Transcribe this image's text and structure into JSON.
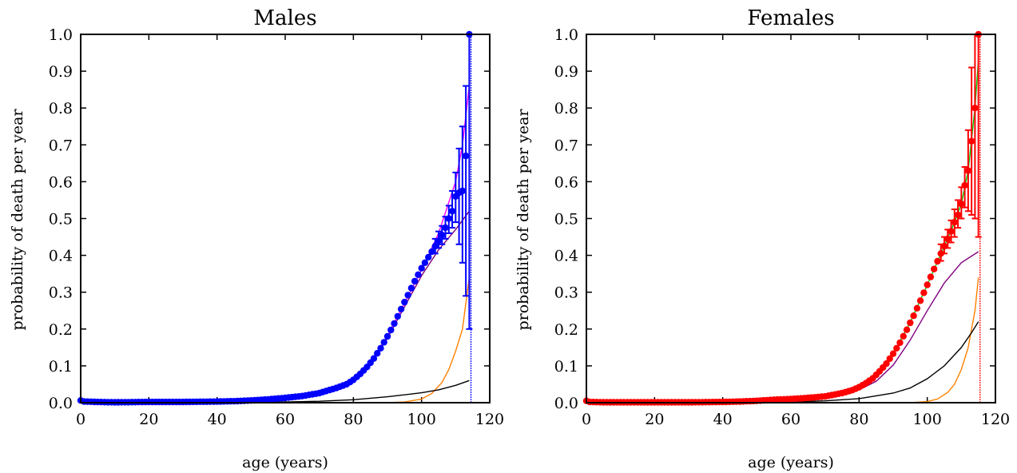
{
  "chart_data": [
    {
      "type": "line",
      "title": "Males",
      "xlabel": "age (years)",
      "ylabel": "probability of death per year",
      "xlim": [
        0,
        120
      ],
      "ylim": [
        0.0,
        1.0
      ],
      "xticks": [
        "0",
        "20",
        "40",
        "60",
        "80",
        "100",
        "120"
      ],
      "yticks": [
        "0.0",
        "0.1",
        "0.2",
        "0.3",
        "0.4",
        "0.5",
        "0.6",
        "0.7",
        "0.8",
        "0.9",
        "1.0"
      ],
      "grid": false,
      "legend": "none",
      "colors": {
        "data": "#0000ff",
        "fit": "#ff00ff",
        "component_a": "#800080",
        "component_b": "#000000",
        "component_c": "#ff8000"
      },
      "data_series": {
        "color": "#0000ff",
        "points": [
          [
            0,
            0.006
          ],
          [
            1,
            0.003
          ],
          [
            5,
            0.002
          ],
          [
            10,
            0.001
          ],
          [
            20,
            0.002
          ],
          [
            30,
            0.002
          ],
          [
            40,
            0.003
          ],
          [
            45,
            0.004
          ],
          [
            50,
            0.006
          ],
          [
            55,
            0.009
          ],
          [
            60,
            0.013
          ],
          [
            65,
            0.018
          ],
          [
            70,
            0.026
          ],
          [
            75,
            0.04
          ],
          [
            78,
            0.05
          ],
          [
            80,
            0.062
          ],
          [
            82,
            0.078
          ],
          [
            84,
            0.097
          ],
          [
            86,
            0.12
          ],
          [
            88,
            0.148
          ],
          [
            90,
            0.18
          ],
          [
            92,
            0.215
          ],
          [
            94,
            0.254
          ],
          [
            96,
            0.292
          ],
          [
            98,
            0.33
          ],
          [
            100,
            0.365
          ],
          [
            102,
            0.395
          ],
          [
            104,
            0.425
          ],
          [
            106,
            0.455
          ],
          [
            107,
            0.475
          ],
          [
            108,
            0.5
          ],
          [
            109,
            0.52
          ],
          [
            110,
            0.56
          ],
          [
            111,
            0.57
          ],
          [
            112,
            0.575
          ],
          [
            113,
            0.67
          ],
          [
            114,
            1.0
          ]
        ],
        "errorbars": [
          [
            104,
            0.405,
            0.445
          ],
          [
            105,
            0.42,
            0.465
          ],
          [
            106,
            0.43,
            0.48
          ],
          [
            107,
            0.445,
            0.505
          ],
          [
            108,
            0.46,
            0.535
          ],
          [
            109,
            0.475,
            0.575
          ],
          [
            110,
            0.49,
            0.625
          ],
          [
            111,
            0.43,
            0.69
          ],
          [
            112,
            0.38,
            0.75
          ],
          [
            113,
            0.29,
            0.86
          ],
          [
            114,
            0.2,
            1.0
          ]
        ]
      },
      "curves": [
        {
          "color": "#ff00ff",
          "points": [
            [
              0,
              0.004
            ],
            [
              40,
              0.003
            ],
            [
              60,
              0.013
            ],
            [
              70,
              0.027
            ],
            [
              80,
              0.063
            ],
            [
              85,
              0.11
            ],
            [
              90,
              0.182
            ],
            [
              95,
              0.27
            ],
            [
              100,
              0.36
            ],
            [
              105,
              0.46
            ],
            [
              110,
              0.6
            ],
            [
              112,
              0.7
            ],
            [
              114,
              0.86
            ]
          ]
        },
        {
          "color": "#800080",
          "points": [
            [
              0,
              0.003
            ],
            [
              50,
              0.003
            ],
            [
              60,
              0.008
            ],
            [
              70,
              0.022
            ],
            [
              80,
              0.058
            ],
            [
              85,
              0.105
            ],
            [
              90,
              0.175
            ],
            [
              95,
              0.26
            ],
            [
              100,
              0.345
            ],
            [
              105,
              0.415
            ],
            [
              110,
              0.47
            ],
            [
              114,
              0.52
            ]
          ]
        },
        {
          "color": "#000000",
          "points": [
            [
              0,
              0.0
            ],
            [
              50,
              0.001
            ],
            [
              60,
              0.002
            ],
            [
              70,
              0.004
            ],
            [
              80,
              0.008
            ],
            [
              90,
              0.016
            ],
            [
              100,
              0.027
            ],
            [
              105,
              0.035
            ],
            [
              110,
              0.047
            ],
            [
              114,
              0.06
            ]
          ]
        },
        {
          "color": "#ff8000",
          "points": [
            [
              0,
              0.0
            ],
            [
              90,
              0.0
            ],
            [
              95,
              0.002
            ],
            [
              100,
              0.01
            ],
            [
              103,
              0.025
            ],
            [
              106,
              0.055
            ],
            [
              108,
              0.09
            ],
            [
              110,
              0.14
            ],
            [
              112,
              0.2
            ],
            [
              113,
              0.27
            ],
            [
              114,
              0.34
            ]
          ]
        }
      ],
      "vline": {
        "x": 114.5,
        "color": "#0000ff"
      }
    },
    {
      "type": "line",
      "title": "Females",
      "xlabel": "age (years)",
      "ylabel": "probability of death per year",
      "xlim": [
        0,
        120
      ],
      "ylim": [
        0.0,
        1.0
      ],
      "xticks": [
        "0",
        "20",
        "40",
        "60",
        "80",
        "100",
        "120"
      ],
      "yticks": [
        "0.0",
        "0.1",
        "0.2",
        "0.3",
        "0.4",
        "0.5",
        "0.6",
        "0.7",
        "0.8",
        "0.9",
        "1.0"
      ],
      "grid": false,
      "legend": "none",
      "colors": {
        "data": "#ff0000",
        "fit": "#00cc00",
        "component_a": "#800080",
        "component_b": "#000000",
        "component_c": "#ff8000"
      },
      "data_series": {
        "color": "#ff0000",
        "points": [
          [
            0,
            0.005
          ],
          [
            1,
            0.002
          ],
          [
            5,
            0.001
          ],
          [
            10,
            0.001
          ],
          [
            20,
            0.001
          ],
          [
            30,
            0.001
          ],
          [
            40,
            0.002
          ],
          [
            45,
            0.003
          ],
          [
            50,
            0.005
          ],
          [
            55,
            0.008
          ],
          [
            60,
            0.01
          ],
          [
            65,
            0.013
          ],
          [
            70,
            0.017
          ],
          [
            75,
            0.026
          ],
          [
            78,
            0.034
          ],
          [
            80,
            0.042
          ],
          [
            82,
            0.053
          ],
          [
            84,
            0.066
          ],
          [
            86,
            0.085
          ],
          [
            88,
            0.106
          ],
          [
            90,
            0.133
          ],
          [
            92,
            0.163
          ],
          [
            94,
            0.198
          ],
          [
            96,
            0.236
          ],
          [
            98,
            0.277
          ],
          [
            100,
            0.32
          ],
          [
            102,
            0.363
          ],
          [
            104,
            0.405
          ],
          [
            106,
            0.445
          ],
          [
            107,
            0.465
          ],
          [
            108,
            0.49
          ],
          [
            109,
            0.51
          ],
          [
            110,
            0.54
          ],
          [
            111,
            0.59
          ],
          [
            112,
            0.63
          ],
          [
            113,
            0.71
          ],
          [
            114,
            0.8
          ],
          [
            115,
            1.0
          ]
        ],
        "errorbars": [
          [
            104,
            0.385,
            0.43
          ],
          [
            105,
            0.405,
            0.45
          ],
          [
            106,
            0.42,
            0.47
          ],
          [
            107,
            0.435,
            0.495
          ],
          [
            108,
            0.45,
            0.525
          ],
          [
            109,
            0.475,
            0.55
          ],
          [
            110,
            0.5,
            0.585
          ],
          [
            111,
            0.53,
            0.64
          ],
          [
            112,
            0.52,
            0.74
          ],
          [
            113,
            0.51,
            0.91
          ],
          [
            114,
            0.5,
            1.0
          ],
          [
            115,
            0.45,
            1.0
          ]
        ]
      },
      "curves": [
        {
          "color": "#00cc00",
          "points": [
            [
              0,
              0.003
            ],
            [
              40,
              0.002
            ],
            [
              60,
              0.01
            ],
            [
              70,
              0.018
            ],
            [
              80,
              0.043
            ],
            [
              85,
              0.074
            ],
            [
              90,
              0.133
            ],
            [
              95,
              0.218
            ],
            [
              100,
              0.32
            ],
            [
              105,
              0.425
            ],
            [
              108,
              0.49
            ],
            [
              110,
              0.54
            ],
            [
              112,
              0.63
            ],
            [
              114,
              0.8
            ],
            [
              115,
              0.93
            ]
          ]
        },
        {
          "color": "#800080",
          "points": [
            [
              0,
              0.002
            ],
            [
              50,
              0.002
            ],
            [
              60,
              0.006
            ],
            [
              70,
              0.014
            ],
            [
              80,
              0.035
            ],
            [
              85,
              0.058
            ],
            [
              90,
              0.102
            ],
            [
              95,
              0.17
            ],
            [
              100,
              0.25
            ],
            [
              105,
              0.325
            ],
            [
              110,
              0.38
            ],
            [
              115,
              0.41
            ]
          ]
        },
        {
          "color": "#000000",
          "points": [
            [
              0,
              0.0
            ],
            [
              50,
              0.001
            ],
            [
              60,
              0.002
            ],
            [
              70,
              0.005
            ],
            [
              80,
              0.011
            ],
            [
              90,
              0.026
            ],
            [
              95,
              0.04
            ],
            [
              100,
              0.065
            ],
            [
              105,
              0.1
            ],
            [
              110,
              0.15
            ],
            [
              113,
              0.19
            ],
            [
              115,
              0.22
            ]
          ]
        },
        {
          "color": "#ff8000",
          "points": [
            [
              0,
              0.0
            ],
            [
              95,
              0.0
            ],
            [
              100,
              0.003
            ],
            [
              103,
              0.01
            ],
            [
              106,
              0.028
            ],
            [
              108,
              0.05
            ],
            [
              110,
              0.09
            ],
            [
              112,
              0.15
            ],
            [
              114,
              0.25
            ],
            [
              115,
              0.34
            ]
          ]
        }
      ],
      "vline": {
        "x": 115.5,
        "color": "#ff0000"
      }
    }
  ]
}
